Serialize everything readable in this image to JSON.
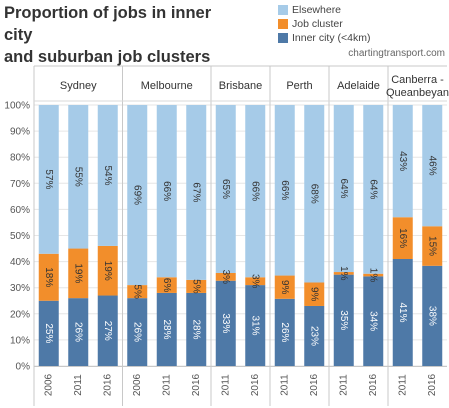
{
  "title_line1": "Proportion of jobs in inner city",
  "title_line2": "and suburban job clusters",
  "source": "chartingtransport.com",
  "legend": [
    {
      "label": "Elsewhere",
      "color": "#a6cbe8"
    },
    {
      "label": "Job cluster",
      "color": "#f28e2b"
    },
    {
      "label": "Inner city (<4km)",
      "color": "#4e79a7"
    }
  ],
  "chart_data": {
    "type": "bar",
    "stacked": true,
    "percent_stacked": true,
    "ylim": [
      0,
      100
    ],
    "y_ticks": [
      "0%",
      "10%",
      "20%",
      "30%",
      "40%",
      "50%",
      "60%",
      "70%",
      "80%",
      "90%",
      "100%"
    ],
    "grid": true,
    "legend_position": "top-right",
    "panels": [
      {
        "name": "Sydney",
        "years": [
          "2006",
          "2011",
          "2016"
        ],
        "inner_city": [
          25,
          26,
          27
        ],
        "job_cluster": [
          18,
          19,
          19
        ],
        "elsewhere": [
          57,
          55,
          54
        ],
        "inner_labels": [
          "25%",
          "26%",
          "27%"
        ],
        "cluster_labels": [
          "18%",
          "19%",
          "19%"
        ],
        "elsewhere_labels": [
          "57%",
          "55%",
          "54%"
        ]
      },
      {
        "name": "Melbourne",
        "years": [
          "2006",
          "2011",
          "2016"
        ],
        "inner_city": [
          26,
          28,
          28
        ],
        "job_cluster": [
          5,
          6,
          5
        ],
        "elsewhere": [
          69,
          66,
          67
        ],
        "inner_labels": [
          "26%",
          "28%",
          "28%"
        ],
        "cluster_labels": [
          "5%",
          "6%",
          "5%"
        ],
        "elsewhere_labels": [
          "69%",
          "66%",
          "67%"
        ]
      },
      {
        "name": "Brisbane",
        "years": [
          "2011",
          "2016"
        ],
        "inner_city": [
          33,
          31
        ],
        "job_cluster": [
          3,
          3
        ],
        "elsewhere": [
          65,
          66
        ],
        "inner_labels": [
          "33%",
          "31%"
        ],
        "cluster_labels": [
          "3%",
          "3%"
        ],
        "elsewhere_labels": [
          "65%",
          "66%"
        ]
      },
      {
        "name": "Perth",
        "years": [
          "2011",
          "2016"
        ],
        "inner_city": [
          26,
          23
        ],
        "job_cluster": [
          9,
          9
        ],
        "elsewhere": [
          66,
          68
        ],
        "inner_labels": [
          "26%",
          "23%"
        ],
        "cluster_labels": [
          "9%",
          "9%"
        ],
        "elsewhere_labels": [
          "66%",
          "68%"
        ]
      },
      {
        "name": "Adelaide",
        "years": [
          "2011",
          "2016"
        ],
        "inner_city": [
          35,
          34
        ],
        "job_cluster": [
          1,
          1
        ],
        "elsewhere": [
          64,
          64
        ],
        "inner_labels": [
          "35%",
          "34%"
        ],
        "cluster_labels": [
          "1%",
          "1%"
        ],
        "elsewhere_labels": [
          "64%",
          "64%"
        ]
      },
      {
        "name": "Canberra - Queanbeyan",
        "header_lines": [
          "Canberra -",
          "Queanbeyan"
        ],
        "years": [
          "2011",
          "2016"
        ],
        "inner_city": [
          41,
          38
        ],
        "job_cluster": [
          16,
          15
        ],
        "elsewhere": [
          43,
          46
        ],
        "inner_labels": [
          "41%",
          "38%"
        ],
        "cluster_labels": [
          "16%",
          "15%"
        ],
        "elsewhere_labels": [
          "43%",
          "46%"
        ]
      }
    ]
  }
}
